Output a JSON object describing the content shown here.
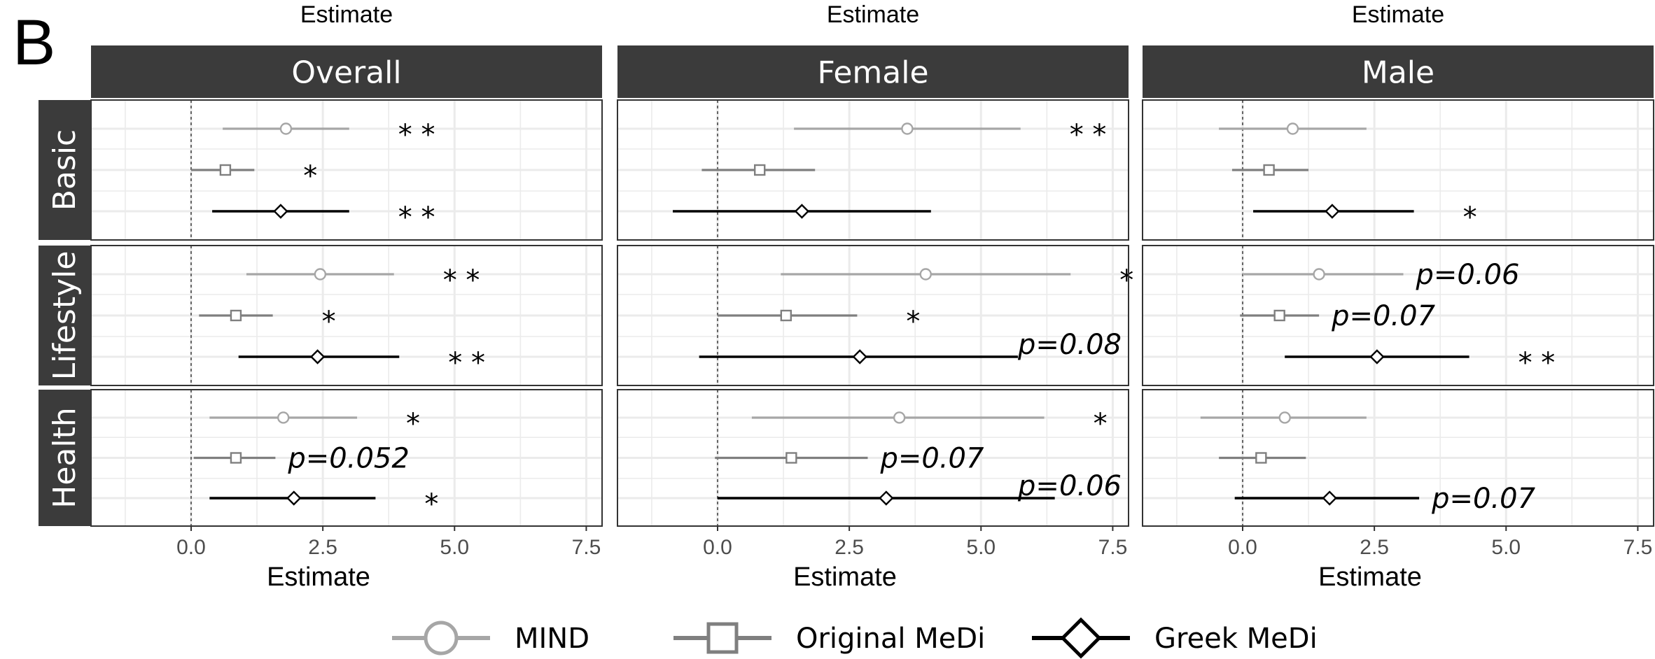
{
  "panel_letter": "B",
  "top_titles": [
    "Estimate",
    "Estimate",
    "Estimate"
  ],
  "colors": {
    "MIND": "#a6a6a6",
    "Original MeDi": "#7f7f7f",
    "Greek MeDi": "#000000",
    "strip": "#3b3b3b",
    "grid": "#ebebeb"
  },
  "chart_data": {
    "type": "forest",
    "facet_columns": [
      "Overall",
      "Female",
      "Male"
    ],
    "facet_rows": [
      "Basic",
      "Lifestyle",
      "Health"
    ],
    "xlabel": "Estimate",
    "xlim": [
      -1.9,
      7.8
    ],
    "xticks": [
      0,
      2.5,
      5,
      7.5
    ],
    "xtick_labels": [
      "0.0",
      "2.5",
      "5.0",
      "7.5"
    ],
    "reference_line": 0,
    "series": [
      {
        "name": "MIND",
        "marker": "circle"
      },
      {
        "name": "Original MeDi",
        "marker": "square"
      },
      {
        "name": "Greek MeDi",
        "marker": "diamond"
      }
    ],
    "estimates": [
      {
        "column": "Overall",
        "row": "Basic",
        "series": "MIND",
        "est": 1.8,
        "lo": 0.6,
        "hi": 3.0,
        "label": "**"
      },
      {
        "column": "Overall",
        "row": "Basic",
        "series": "Original MeDi",
        "est": 0.65,
        "lo": 0.0,
        "hi": 1.2,
        "label": "*"
      },
      {
        "column": "Overall",
        "row": "Basic",
        "series": "Greek MeDi",
        "est": 1.7,
        "lo": 0.4,
        "hi": 3.0,
        "label": "**"
      },
      {
        "column": "Overall",
        "row": "Lifestyle",
        "series": "MIND",
        "est": 2.45,
        "lo": 1.05,
        "hi": 3.85,
        "label": "**"
      },
      {
        "column": "Overall",
        "row": "Lifestyle",
        "series": "Original MeDi",
        "est": 0.85,
        "lo": 0.15,
        "hi": 1.55,
        "label": "*"
      },
      {
        "column": "Overall",
        "row": "Lifestyle",
        "series": "Greek MeDi",
        "est": 2.4,
        "lo": 0.9,
        "hi": 3.95,
        "label": "**"
      },
      {
        "column": "Overall",
        "row": "Health",
        "series": "MIND",
        "est": 1.75,
        "lo": 0.35,
        "hi": 3.15,
        "label": "*"
      },
      {
        "column": "Overall",
        "row": "Health",
        "series": "Original MeDi",
        "est": 0.85,
        "lo": 0.05,
        "hi": 1.6,
        "label": "p=0.052"
      },
      {
        "column": "Overall",
        "row": "Health",
        "series": "Greek MeDi",
        "est": 1.95,
        "lo": 0.35,
        "hi": 3.5,
        "label": "*"
      },
      {
        "column": "Female",
        "row": "Basic",
        "series": "MIND",
        "est": 3.6,
        "lo": 1.45,
        "hi": 5.75,
        "label": "**"
      },
      {
        "column": "Female",
        "row": "Basic",
        "series": "Original MeDi",
        "est": 0.8,
        "lo": -0.3,
        "hi": 1.85,
        "label": ""
      },
      {
        "column": "Female",
        "row": "Basic",
        "series": "Greek MeDi",
        "est": 1.6,
        "lo": -0.85,
        "hi": 4.05,
        "label": ""
      },
      {
        "column": "Female",
        "row": "Lifestyle",
        "series": "MIND",
        "est": 3.95,
        "lo": 1.2,
        "hi": 6.7,
        "label": "**"
      },
      {
        "column": "Female",
        "row": "Lifestyle",
        "series": "Original MeDi",
        "est": 1.3,
        "lo": 0.0,
        "hi": 2.65,
        "label": "*"
      },
      {
        "column": "Female",
        "row": "Lifestyle",
        "series": "Greek MeDi",
        "est": 2.7,
        "lo": -0.35,
        "hi": 5.7,
        "label": "p=0.08"
      },
      {
        "column": "Female",
        "row": "Health",
        "series": "MIND",
        "est": 3.45,
        "lo": 0.65,
        "hi": 6.2,
        "label": "*"
      },
      {
        "column": "Female",
        "row": "Health",
        "series": "Original MeDi",
        "est": 1.4,
        "lo": -0.05,
        "hi": 2.85,
        "label": "p=0.07"
      },
      {
        "column": "Female",
        "row": "Health",
        "series": "Greek MeDi",
        "est": 3.2,
        "lo": 0.0,
        "hi": 6.4,
        "label": "p=0.06"
      },
      {
        "column": "Male",
        "row": "Basic",
        "series": "MIND",
        "est": 0.95,
        "lo": -0.45,
        "hi": 2.35,
        "label": ""
      },
      {
        "column": "Male",
        "row": "Basic",
        "series": "Original MeDi",
        "est": 0.5,
        "lo": -0.2,
        "hi": 1.25,
        "label": ""
      },
      {
        "column": "Male",
        "row": "Basic",
        "series": "Greek MeDi",
        "est": 1.7,
        "lo": 0.2,
        "hi": 3.25,
        "label": "*"
      },
      {
        "column": "Male",
        "row": "Lifestyle",
        "series": "MIND",
        "est": 1.45,
        "lo": 0.0,
        "hi": 3.05,
        "label": "p=0.06"
      },
      {
        "column": "Male",
        "row": "Lifestyle",
        "series": "Original MeDi",
        "est": 0.7,
        "lo": -0.05,
        "hi": 1.45,
        "label": "p=0.07"
      },
      {
        "column": "Male",
        "row": "Lifestyle",
        "series": "Greek MeDi",
        "est": 2.55,
        "lo": 0.8,
        "hi": 4.3,
        "label": "**"
      },
      {
        "column": "Male",
        "row": "Health",
        "series": "MIND",
        "est": 0.8,
        "lo": -0.8,
        "hi": 2.35,
        "label": ""
      },
      {
        "column": "Male",
        "row": "Health",
        "series": "Original MeDi",
        "est": 0.35,
        "lo": -0.45,
        "hi": 1.2,
        "label": ""
      },
      {
        "column": "Male",
        "row": "Health",
        "series": "Greek MeDi",
        "est": 1.65,
        "lo": -0.15,
        "hi": 3.35,
        "label": "p=0.07"
      }
    ],
    "legend": {
      "position": "bottom",
      "entries": [
        "MIND",
        "Original MeDi",
        "Greek MeDi"
      ]
    }
  }
}
